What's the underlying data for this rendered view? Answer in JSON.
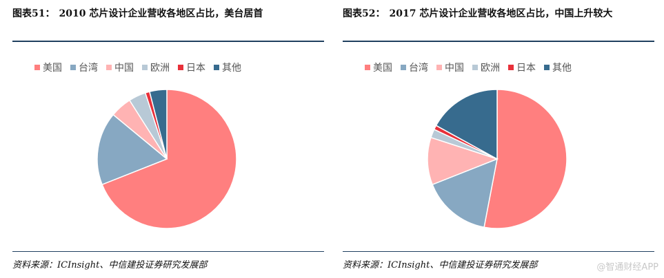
{
  "left": {
    "fig_label": "图表51：",
    "title": "2010 芯片设计企业营收各地区占比，美台居首",
    "source": "资料来源：ICInsight、中信建投证券研究发展部"
  },
  "right": {
    "fig_label": "图表52：",
    "title": "2017 芯片设计企业营收各地区占比，中国上升较大",
    "source": "资料来源：ICInsight、中信建投证券研究发展部"
  },
  "legend": [
    "美国",
    "台湾",
    "中国",
    "欧洲",
    "日本",
    "其他"
  ],
  "colors": [
    "#ff7f7f",
    "#87a8c2",
    "#ffb3b3",
    "#b8c9d6",
    "#e8303a",
    "#376b8e"
  ],
  "watermark": "@智通财经APP",
  "chart_data": [
    {
      "type": "pie",
      "title": "2010",
      "categories": [
        "美国",
        "台湾",
        "中国",
        "欧洲",
        "日本",
        "其他"
      ],
      "values": [
        69,
        17,
        5,
        4,
        1,
        4
      ],
      "legend_position": "top"
    },
    {
      "type": "pie",
      "title": "2017",
      "categories": [
        "美国",
        "台湾",
        "中国",
        "欧洲",
        "日本",
        "其他"
      ],
      "values": [
        53,
        16,
        11,
        2,
        1,
        17
      ],
      "legend_position": "top"
    }
  ]
}
